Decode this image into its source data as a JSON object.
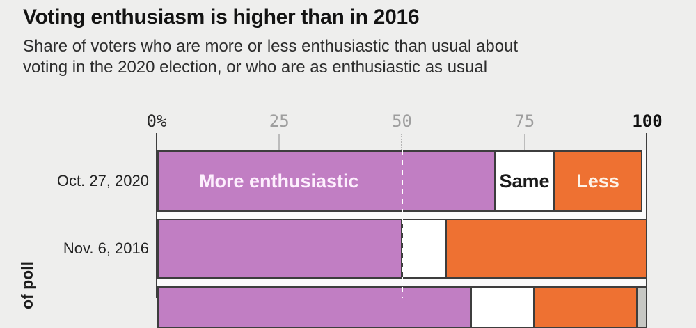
{
  "header": {
    "title": "Voting enthusiasm is higher than in 2016",
    "subtitle_line1": "Share of voters who are more or less enthusiastic than usual about",
    "subtitle_line2": "voting in the 2020 election, or who are as enthusiastic as usual"
  },
  "chart_data": {
    "type": "bar",
    "orientation": "horizontal",
    "stacked": true,
    "title": "Voting enthusiasm is higher than in 2016",
    "subtitle": "Share of voters who are more or less enthusiastic than usual about voting in the 2020 election, or who are as enthusiastic as usual",
    "x_axis": {
      "range": [
        0,
        100
      ],
      "ticks": [
        {
          "label": "0%",
          "value": 0,
          "style": "dark-edge"
        },
        {
          "label": "25",
          "value": 25,
          "style": "gray"
        },
        {
          "label": "50",
          "value": 50,
          "style": "dashed"
        },
        {
          "label": "75",
          "value": 75,
          "style": "gray"
        },
        {
          "label": "100",
          "value": 100,
          "style": "dark-edge-bold"
        }
      ]
    },
    "y_axis_label_visible": "of poll",
    "categories": [
      "Oct. 27, 2020",
      "Nov. 6, 2016",
      ""
    ],
    "series": [
      {
        "key": "more",
        "name": "More enthusiastic",
        "color": "#c17ec3",
        "label_color": "#fdeffd",
        "values": [
          69,
          50,
          64
        ]
      },
      {
        "key": "same",
        "name": "Same",
        "color": "#ffffff",
        "label_color": "#1a1a1a",
        "values": [
          12,
          9,
          13
        ]
      },
      {
        "key": "less",
        "name": "Less",
        "color": "#ee7132",
        "label_color": "#fdf3e8",
        "values": [
          18,
          41,
          21
        ]
      },
      {
        "key": "na",
        "name": "",
        "color": "#c6c7c3",
        "label_color": "#333333",
        "values": [
          0,
          0,
          2
        ]
      }
    ],
    "labeled_row_index": 0,
    "legend_position": "in-bar",
    "grid": "vertical-ticks-only",
    "colors": {
      "segment_border": "#3d3d3d",
      "background": "#eeeeed",
      "dashed_midline": "#ffffff"
    }
  }
}
